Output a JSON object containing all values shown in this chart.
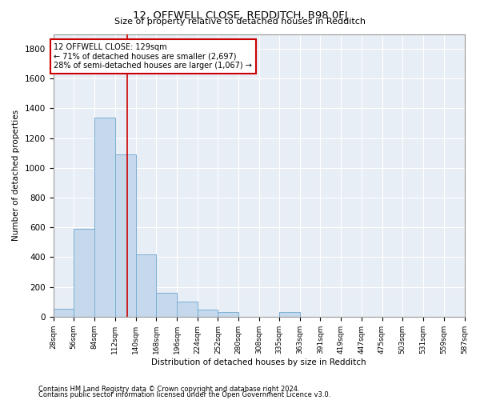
{
  "title": "12, OFFWELL CLOSE, REDDITCH, B98 0FJ",
  "subtitle": "Size of property relative to detached houses in Redditch",
  "xlabel": "Distribution of detached houses by size in Redditch",
  "ylabel": "Number of detached properties",
  "footnote1": "Contains HM Land Registry data © Crown copyright and database right 2024.",
  "footnote2": "Contains public sector information licensed under the Open Government Licence v3.0.",
  "annotation_line1": "12 OFFWELL CLOSE: 129sqm",
  "annotation_line2": "← 71% of detached houses are smaller (2,697)",
  "annotation_line3": "28% of semi-detached houses are larger (1,067) →",
  "property_size": 129,
  "bin_edges": [
    28,
    56,
    84,
    112,
    140,
    168,
    196,
    224,
    252,
    280,
    308,
    335,
    363,
    391,
    419,
    447,
    475,
    503,
    531,
    559,
    587
  ],
  "bar_values": [
    55,
    590,
    1340,
    1090,
    420,
    160,
    100,
    50,
    30,
    0,
    0,
    30,
    0,
    0,
    0,
    0,
    0,
    0,
    0,
    0
  ],
  "bar_color": "#c5d8ec",
  "bar_edge_color": "#7aafd4",
  "vline_color": "#cc0000",
  "annotation_box_color": "#cc0000",
  "background_color": "#e8eef5",
  "ylim": [
    0,
    1900
  ],
  "yticks": [
    0,
    200,
    400,
    600,
    800,
    1000,
    1200,
    1400,
    1600,
    1800
  ]
}
